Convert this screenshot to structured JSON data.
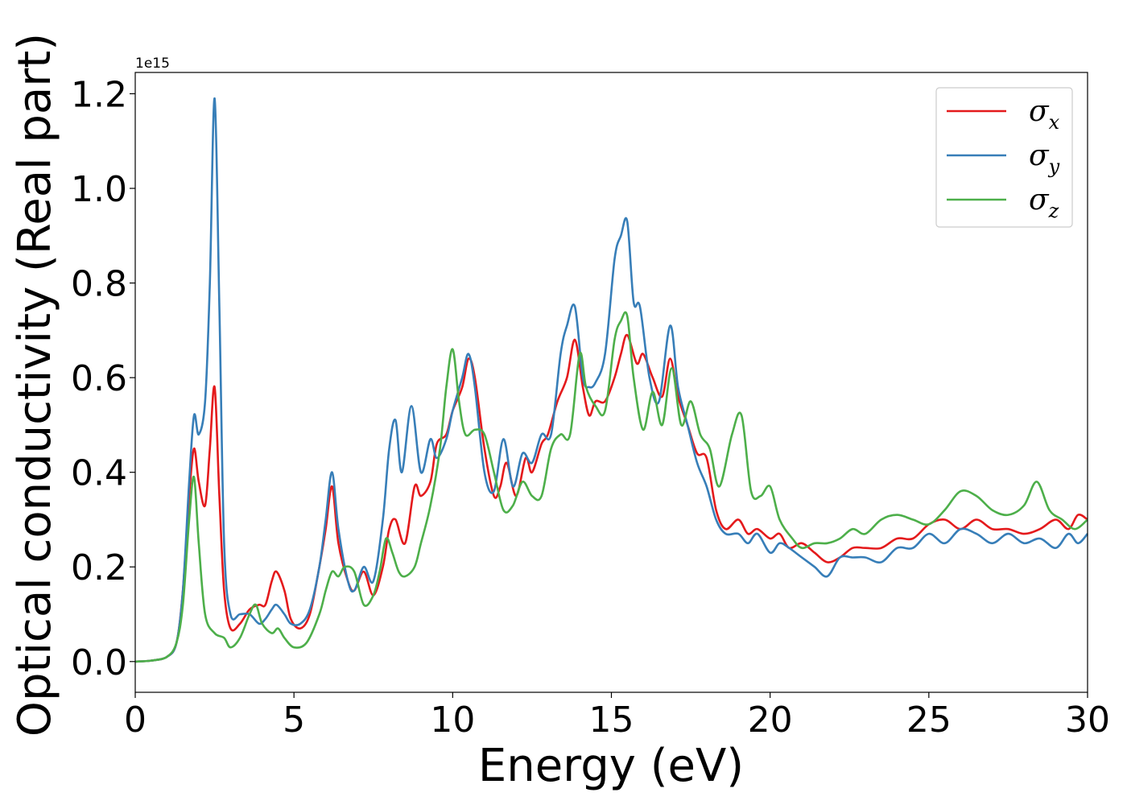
{
  "chart_data": {
    "type": "line",
    "xlabel": "Energy (eV)",
    "ylabel": "Optical conductivity (Real part)",
    "y_offset_label": "1e15",
    "xlim": [
      0,
      30
    ],
    "ylim": [
      -0.065,
      1.245
    ],
    "x_ticks": [
      0,
      5,
      10,
      15,
      20,
      25,
      30
    ],
    "y_ticks": [
      0.0,
      0.2,
      0.4,
      0.6,
      0.8,
      1.0,
      1.2
    ],
    "x_tick_labels": [
      "0",
      "5",
      "10",
      "15",
      "20",
      "25",
      "30"
    ],
    "y_tick_labels": [
      "0.0",
      "0.2",
      "0.4",
      "0.6",
      "0.8",
      "1.0",
      "1.2"
    ],
    "grid": false,
    "legend_position": "top-right",
    "series": [
      {
        "name": "σx",
        "symbol": "σ",
        "subscript": "x",
        "color": "#e41a1c",
        "points": [
          [
            0,
            0
          ],
          [
            0.5,
            0.002
          ],
          [
            1,
            0.01
          ],
          [
            1.3,
            0.04
          ],
          [
            1.5,
            0.15
          ],
          [
            1.7,
            0.35
          ],
          [
            1.85,
            0.45
          ],
          [
            2.0,
            0.38
          ],
          [
            2.2,
            0.33
          ],
          [
            2.35,
            0.45
          ],
          [
            2.5,
            0.58
          ],
          [
            2.65,
            0.35
          ],
          [
            2.8,
            0.15
          ],
          [
            3.0,
            0.07
          ],
          [
            3.3,
            0.08
          ],
          [
            3.6,
            0.11
          ],
          [
            3.9,
            0.12
          ],
          [
            4.1,
            0.12
          ],
          [
            4.3,
            0.17
          ],
          [
            4.45,
            0.19
          ],
          [
            4.7,
            0.15
          ],
          [
            4.9,
            0.09
          ],
          [
            5.2,
            0.07
          ],
          [
            5.5,
            0.1
          ],
          [
            5.8,
            0.2
          ],
          [
            6.0,
            0.28
          ],
          [
            6.2,
            0.37
          ],
          [
            6.4,
            0.25
          ],
          [
            6.7,
            0.17
          ],
          [
            6.9,
            0.15
          ],
          [
            7.2,
            0.19
          ],
          [
            7.5,
            0.14
          ],
          [
            7.8,
            0.2
          ],
          [
            8.0,
            0.28
          ],
          [
            8.2,
            0.3
          ],
          [
            8.5,
            0.25
          ],
          [
            8.8,
            0.37
          ],
          [
            9.0,
            0.35
          ],
          [
            9.3,
            0.38
          ],
          [
            9.5,
            0.46
          ],
          [
            9.8,
            0.48
          ],
          [
            10.0,
            0.53
          ],
          [
            10.3,
            0.58
          ],
          [
            10.5,
            0.64
          ],
          [
            10.7,
            0.6
          ],
          [
            11.0,
            0.45
          ],
          [
            11.3,
            0.35
          ],
          [
            11.5,
            0.37
          ],
          [
            11.7,
            0.42
          ],
          [
            12.0,
            0.35
          ],
          [
            12.3,
            0.43
          ],
          [
            12.5,
            0.4
          ],
          [
            12.8,
            0.46
          ],
          [
            13.0,
            0.48
          ],
          [
            13.3,
            0.55
          ],
          [
            13.6,
            0.6
          ],
          [
            13.85,
            0.68
          ],
          [
            14.1,
            0.58
          ],
          [
            14.3,
            0.52
          ],
          [
            14.5,
            0.55
          ],
          [
            14.8,
            0.55
          ],
          [
            15.1,
            0.6
          ],
          [
            15.3,
            0.65
          ],
          [
            15.5,
            0.69
          ],
          [
            15.8,
            0.63
          ],
          [
            16.0,
            0.65
          ],
          [
            16.3,
            0.6
          ],
          [
            16.6,
            0.56
          ],
          [
            16.85,
            0.64
          ],
          [
            17.1,
            0.56
          ],
          [
            17.4,
            0.5
          ],
          [
            17.7,
            0.44
          ],
          [
            18.0,
            0.43
          ],
          [
            18.3,
            0.32
          ],
          [
            18.6,
            0.28
          ],
          [
            19.0,
            0.3
          ],
          [
            19.3,
            0.27
          ],
          [
            19.6,
            0.28
          ],
          [
            20.0,
            0.26
          ],
          [
            20.3,
            0.27
          ],
          [
            20.6,
            0.24
          ],
          [
            21.0,
            0.25
          ],
          [
            21.4,
            0.23
          ],
          [
            21.8,
            0.21
          ],
          [
            22.2,
            0.22
          ],
          [
            22.6,
            0.24
          ],
          [
            23.0,
            0.24
          ],
          [
            23.5,
            0.24
          ],
          [
            24.0,
            0.26
          ],
          [
            24.5,
            0.26
          ],
          [
            25.0,
            0.29
          ],
          [
            25.5,
            0.3
          ],
          [
            26.0,
            0.28
          ],
          [
            26.5,
            0.3
          ],
          [
            27.0,
            0.28
          ],
          [
            27.5,
            0.28
          ],
          [
            28.0,
            0.27
          ],
          [
            28.5,
            0.28
          ],
          [
            29.0,
            0.3
          ],
          [
            29.4,
            0.28
          ],
          [
            29.7,
            0.31
          ],
          [
            30.0,
            0.3
          ]
        ]
      },
      {
        "name": "σy",
        "symbol": "σ",
        "subscript": "y",
        "color": "#377eb8",
        "points": [
          [
            0,
            0
          ],
          [
            0.5,
            0.002
          ],
          [
            1,
            0.01
          ],
          [
            1.3,
            0.04
          ],
          [
            1.5,
            0.15
          ],
          [
            1.7,
            0.38
          ],
          [
            1.85,
            0.52
          ],
          [
            2.0,
            0.48
          ],
          [
            2.2,
            0.55
          ],
          [
            2.35,
            0.8
          ],
          [
            2.5,
            1.19
          ],
          [
            2.65,
            0.75
          ],
          [
            2.8,
            0.25
          ],
          [
            3.0,
            0.1
          ],
          [
            3.3,
            0.1
          ],
          [
            3.6,
            0.1
          ],
          [
            3.9,
            0.08
          ],
          [
            4.1,
            0.09
          ],
          [
            4.3,
            0.11
          ],
          [
            4.45,
            0.12
          ],
          [
            4.7,
            0.1
          ],
          [
            4.9,
            0.08
          ],
          [
            5.2,
            0.08
          ],
          [
            5.5,
            0.11
          ],
          [
            5.8,
            0.2
          ],
          [
            6.0,
            0.3
          ],
          [
            6.2,
            0.4
          ],
          [
            6.4,
            0.28
          ],
          [
            6.7,
            0.17
          ],
          [
            6.9,
            0.15
          ],
          [
            7.2,
            0.2
          ],
          [
            7.5,
            0.17
          ],
          [
            7.8,
            0.3
          ],
          [
            8.0,
            0.45
          ],
          [
            8.2,
            0.51
          ],
          [
            8.4,
            0.4
          ],
          [
            8.7,
            0.54
          ],
          [
            9.0,
            0.4
          ],
          [
            9.3,
            0.47
          ],
          [
            9.5,
            0.43
          ],
          [
            9.8,
            0.47
          ],
          [
            10.0,
            0.53
          ],
          [
            10.3,
            0.6
          ],
          [
            10.5,
            0.65
          ],
          [
            10.7,
            0.58
          ],
          [
            11.0,
            0.4
          ],
          [
            11.3,
            0.36
          ],
          [
            11.6,
            0.47
          ],
          [
            11.9,
            0.37
          ],
          [
            12.2,
            0.44
          ],
          [
            12.5,
            0.42
          ],
          [
            12.8,
            0.48
          ],
          [
            13.1,
            0.48
          ],
          [
            13.4,
            0.65
          ],
          [
            13.6,
            0.71
          ],
          [
            13.85,
            0.75
          ],
          [
            14.1,
            0.6
          ],
          [
            14.3,
            0.58
          ],
          [
            14.5,
            0.59
          ],
          [
            14.8,
            0.65
          ],
          [
            15.1,
            0.85
          ],
          [
            15.3,
            0.9
          ],
          [
            15.5,
            0.93
          ],
          [
            15.7,
            0.76
          ],
          [
            15.9,
            0.75
          ],
          [
            16.2,
            0.6
          ],
          [
            16.5,
            0.55
          ],
          [
            16.85,
            0.71
          ],
          [
            17.1,
            0.58
          ],
          [
            17.4,
            0.5
          ],
          [
            17.7,
            0.42
          ],
          [
            18.0,
            0.37
          ],
          [
            18.3,
            0.3
          ],
          [
            18.6,
            0.27
          ],
          [
            19.0,
            0.27
          ],
          [
            19.3,
            0.25
          ],
          [
            19.6,
            0.27
          ],
          [
            20.0,
            0.23
          ],
          [
            20.3,
            0.25
          ],
          [
            20.6,
            0.24
          ],
          [
            21.0,
            0.22
          ],
          [
            21.4,
            0.2
          ],
          [
            21.8,
            0.18
          ],
          [
            22.2,
            0.22
          ],
          [
            22.6,
            0.22
          ],
          [
            23.0,
            0.22
          ],
          [
            23.5,
            0.21
          ],
          [
            24.0,
            0.24
          ],
          [
            24.5,
            0.24
          ],
          [
            25.0,
            0.27
          ],
          [
            25.5,
            0.25
          ],
          [
            26.0,
            0.28
          ],
          [
            26.5,
            0.27
          ],
          [
            27.0,
            0.25
          ],
          [
            27.5,
            0.27
          ],
          [
            28.0,
            0.25
          ],
          [
            28.5,
            0.26
          ],
          [
            29.0,
            0.24
          ],
          [
            29.4,
            0.27
          ],
          [
            29.7,
            0.25
          ],
          [
            30.0,
            0.27
          ]
        ]
      },
      {
        "name": "σz",
        "symbol": "σ",
        "subscript": "z",
        "color": "#4daf4a",
        "points": [
          [
            0,
            0
          ],
          [
            0.5,
            0.002
          ],
          [
            1,
            0.01
          ],
          [
            1.3,
            0.04
          ],
          [
            1.5,
            0.12
          ],
          [
            1.7,
            0.3
          ],
          [
            1.85,
            0.39
          ],
          [
            2.0,
            0.25
          ],
          [
            2.2,
            0.1
          ],
          [
            2.5,
            0.06
          ],
          [
            2.8,
            0.05
          ],
          [
            3.0,
            0.03
          ],
          [
            3.3,
            0.05
          ],
          [
            3.6,
            0.1
          ],
          [
            3.8,
            0.12
          ],
          [
            4.0,
            0.08
          ],
          [
            4.3,
            0.06
          ],
          [
            4.5,
            0.07
          ],
          [
            4.7,
            0.05
          ],
          [
            5.0,
            0.03
          ],
          [
            5.4,
            0.04
          ],
          [
            5.8,
            0.1
          ],
          [
            6.0,
            0.15
          ],
          [
            6.2,
            0.19
          ],
          [
            6.4,
            0.18
          ],
          [
            6.6,
            0.2
          ],
          [
            6.9,
            0.19
          ],
          [
            7.2,
            0.12
          ],
          [
            7.5,
            0.14
          ],
          [
            7.7,
            0.19
          ],
          [
            7.9,
            0.26
          ],
          [
            8.1,
            0.23
          ],
          [
            8.3,
            0.19
          ],
          [
            8.5,
            0.18
          ],
          [
            8.8,
            0.2
          ],
          [
            9.0,
            0.25
          ],
          [
            9.3,
            0.33
          ],
          [
            9.6,
            0.45
          ],
          [
            9.8,
            0.58
          ],
          [
            10.0,
            0.66
          ],
          [
            10.2,
            0.55
          ],
          [
            10.4,
            0.48
          ],
          [
            10.7,
            0.49
          ],
          [
            11.0,
            0.48
          ],
          [
            11.3,
            0.4
          ],
          [
            11.6,
            0.32
          ],
          [
            11.9,
            0.33
          ],
          [
            12.2,
            0.38
          ],
          [
            12.5,
            0.35
          ],
          [
            12.8,
            0.35
          ],
          [
            13.1,
            0.45
          ],
          [
            13.4,
            0.48
          ],
          [
            13.7,
            0.48
          ],
          [
            14.0,
            0.65
          ],
          [
            14.2,
            0.58
          ],
          [
            14.5,
            0.54
          ],
          [
            14.8,
            0.53
          ],
          [
            15.1,
            0.68
          ],
          [
            15.3,
            0.72
          ],
          [
            15.5,
            0.73
          ],
          [
            15.7,
            0.6
          ],
          [
            16.0,
            0.49
          ],
          [
            16.3,
            0.57
          ],
          [
            16.6,
            0.5
          ],
          [
            16.9,
            0.62
          ],
          [
            17.2,
            0.5
          ],
          [
            17.5,
            0.55
          ],
          [
            17.8,
            0.48
          ],
          [
            18.1,
            0.45
          ],
          [
            18.4,
            0.37
          ],
          [
            18.8,
            0.48
          ],
          [
            19.1,
            0.52
          ],
          [
            19.4,
            0.36
          ],
          [
            19.7,
            0.35
          ],
          [
            20.0,
            0.37
          ],
          [
            20.3,
            0.3
          ],
          [
            20.7,
            0.26
          ],
          [
            21.0,
            0.24
          ],
          [
            21.4,
            0.25
          ],
          [
            21.8,
            0.25
          ],
          [
            22.2,
            0.26
          ],
          [
            22.6,
            0.28
          ],
          [
            23.0,
            0.27
          ],
          [
            23.5,
            0.3
          ],
          [
            24.0,
            0.31
          ],
          [
            24.5,
            0.3
          ],
          [
            25.0,
            0.29
          ],
          [
            25.5,
            0.32
          ],
          [
            26.0,
            0.36
          ],
          [
            26.5,
            0.35
          ],
          [
            27.0,
            0.32
          ],
          [
            27.5,
            0.31
          ],
          [
            28.0,
            0.33
          ],
          [
            28.4,
            0.38
          ],
          [
            28.8,
            0.32
          ],
          [
            29.2,
            0.3
          ],
          [
            29.6,
            0.28
          ],
          [
            30.0,
            0.3
          ]
        ]
      }
    ]
  }
}
